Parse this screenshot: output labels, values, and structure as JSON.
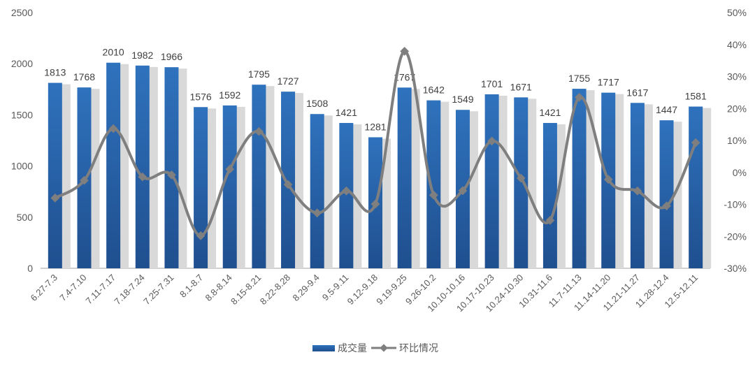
{
  "chart_data": {
    "type": "bar",
    "title": "",
    "categories": [
      "6.27-7.3",
      "7.4-7.10",
      "7.11-7.17",
      "7.18-7.24",
      "7.25-7.31",
      "8.1-8.7",
      "8.8-8.14",
      "8.15-8.21",
      "8.22-8.28",
      "8.29-9.4",
      "9.5-9.11",
      "9.12-9.18",
      "9.19-9.25",
      "9.26-10.2",
      "10.10-10.16",
      "10.17-10.23",
      "10.24-10.30",
      "10.31-11.6",
      "11.7-11.13",
      "11.14-11.20",
      "11.21-11.27",
      "11.28-12.4",
      "12.5-12.11"
    ],
    "series": [
      {
        "name": "成交量",
        "type": "bar",
        "axis": "left",
        "color": "#2a65ad",
        "values": [
          1813,
          1768,
          2010,
          1982,
          1966,
          1576,
          1592,
          1795,
          1727,
          1508,
          1421,
          1281,
          1767,
          1642,
          1549,
          1701,
          1671,
          1421,
          1755,
          1717,
          1617,
          1447,
          1581
        ]
      },
      {
        "name": "环比情况",
        "type": "line",
        "axis": "right",
        "color": "#7f7f7f",
        "unit": "%",
        "values": [
          -8,
          -2.5,
          13.7,
          -1.4,
          -0.8,
          -19.8,
          1.0,
          12.8,
          -3.8,
          -12.7,
          -5.8,
          -9.9,
          37.9,
          -7.1,
          -5.7,
          9.8,
          -1.8,
          -15.0,
          23.5,
          -2.2,
          -5.8,
          -10.5,
          9.3
        ]
      }
    ],
    "y_left": {
      "min": 0,
      "max": 2500,
      "ticks": [
        "0",
        "500",
        "1000",
        "1500",
        "2000",
        "2500"
      ]
    },
    "y_right": {
      "min": -30,
      "max": 50,
      "ticks": [
        "-30%",
        "-20%",
        "-10%",
        "0%",
        "10%",
        "20%",
        "30%",
        "40%",
        "50%"
      ]
    },
    "grid": false,
    "legend": {
      "position": "bottom",
      "labels": [
        "成交量",
        "环比情况"
      ]
    }
  }
}
